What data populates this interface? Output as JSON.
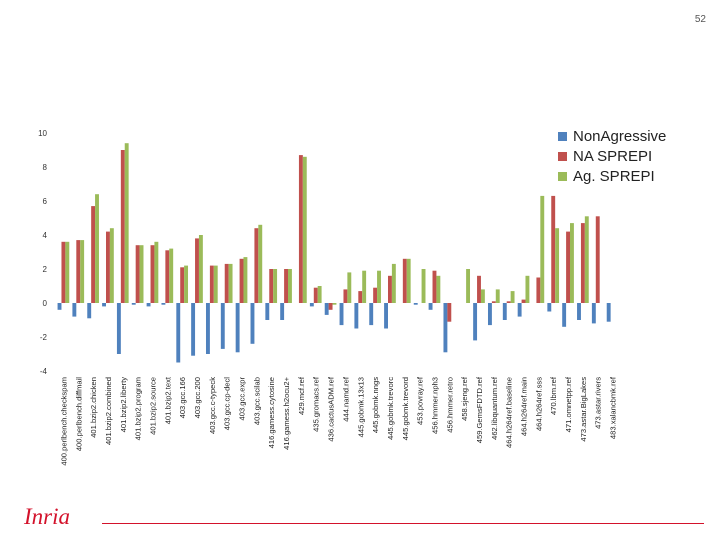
{
  "page": {
    "number": "52"
  },
  "logo": {
    "text": "Inria"
  },
  "colors": {
    "series": [
      "#4f81bd",
      "#c0504d",
      "#9bbb59"
    ],
    "logo": "#d3122b"
  },
  "chart_data": {
    "type": "bar",
    "title": "",
    "xlabel": "",
    "ylabel": "",
    "ylim": [
      -4,
      10
    ],
    "yticks": [
      -4,
      -2,
      0,
      2,
      4,
      6,
      8,
      10
    ],
    "grid": false,
    "legend_position": "top-right",
    "categories": [
      "400.perlbench.checkspam",
      "400.perlbench.diffmail",
      "401.bzip2.chicken",
      "401.bzip2.combined",
      "401.bzip2.liberty",
      "401.bzip2.program",
      "401.bzip2.source",
      "401.bzip2.text",
      "403.gcc.166",
      "403.gcc.200",
      "403.gcc.c-typeck",
      "403.gcc.cp-decl",
      "403.gcc.expr",
      "403.gcc.scilab",
      "416.gamess.cytosine",
      "416.gamess.h2ocu2+",
      "429.mcf.ref",
      "435.gromacs.ref",
      "436.cactusADM.ref",
      "444.namd.ref",
      "445.gobmk.13x13",
      "445.gobmk.nngs",
      "445.gobmk.trevorc",
      "445.gobmk.trevord",
      "453.povray.ref",
      "456.hmmer.nph3",
      "456.hmmer.retro",
      "458.sjeng.ref",
      "459.GemsFDTD.ref",
      "462.libquantum.ref",
      "464.h264ref.baseline",
      "464.h264ref.main",
      "464.h264ref.sss",
      "470.lbm.ref",
      "471.omnetpp.ref",
      "473.astar.BigLakes",
      "473.astar.rivers",
      "483.xalancbmk.ref"
    ],
    "series": [
      {
        "name": "NonAgressive",
        "values": [
          -0.4,
          -0.8,
          -0.9,
          -0.2,
          -3.0,
          -0.1,
          -0.2,
          -0.1,
          -3.5,
          -3.1,
          -3.0,
          -2.7,
          -2.9,
          -2.4,
          -1.0,
          -1.0,
          0.0,
          -0.2,
          -0.7,
          -1.3,
          -1.5,
          -1.3,
          -1.5,
          0.0,
          -0.1,
          -0.4,
          -2.9,
          0.0,
          -2.2,
          -1.3,
          -1.0,
          -0.8,
          0.0,
          -0.5,
          -1.4,
          -1.0,
          -1.2,
          -1.1
        ]
      },
      {
        "name": "NA SPREPI",
        "values": [
          3.6,
          3.7,
          5.7,
          4.2,
          9.0,
          3.4,
          3.4,
          3.1,
          2.1,
          3.8,
          2.2,
          2.3,
          2.6,
          4.4,
          2.0,
          2.0,
          8.7,
          0.9,
          -0.4,
          0.8,
          0.7,
          0.9,
          1.6,
          2.6,
          0.0,
          1.9,
          -1.1,
          0.0,
          1.6,
          0.1,
          0.1,
          0.2,
          1.5,
          6.3,
          4.2,
          4.7,
          5.1,
          0.0
        ]
      },
      {
        "name": "Ag. SPREPI",
        "values": [
          3.6,
          3.7,
          6.4,
          4.4,
          9.4,
          3.4,
          3.6,
          3.2,
          2.2,
          4.0,
          2.2,
          2.3,
          2.7,
          4.6,
          2.0,
          2.0,
          8.6,
          1.0,
          -0.1,
          1.8,
          1.9,
          1.9,
          2.3,
          2.6,
          2.0,
          1.6,
          0.0,
          2.0,
          0.8,
          0.8,
          0.7,
          1.6,
          6.3,
          4.4,
          4.7,
          5.1,
          0.0,
          0.0
        ]
      }
    ]
  }
}
